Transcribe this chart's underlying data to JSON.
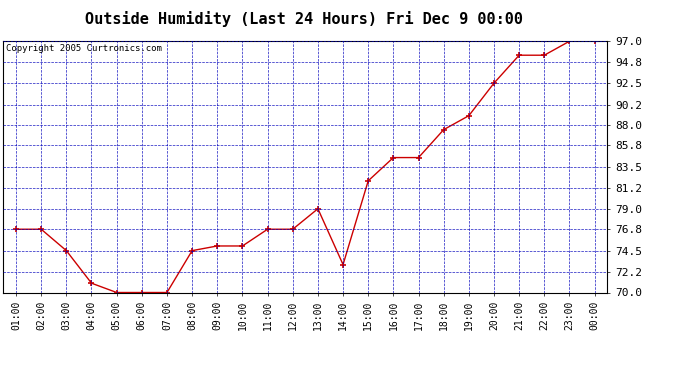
{
  "title": "Outside Humidity (Last 24 Hours) Fri Dec 9 00:00",
  "copyright": "Copyright 2005 Curtronics.com",
  "x_labels": [
    "01:00",
    "02:00",
    "03:00",
    "04:00",
    "05:00",
    "06:00",
    "07:00",
    "08:00",
    "09:00",
    "10:00",
    "11:00",
    "12:00",
    "13:00",
    "14:00",
    "15:00",
    "16:00",
    "17:00",
    "18:00",
    "19:00",
    "20:00",
    "21:00",
    "22:00",
    "23:00",
    "00:00"
  ],
  "y_values": [
    76.8,
    76.8,
    74.5,
    71.0,
    70.0,
    70.0,
    70.0,
    74.5,
    75.0,
    75.0,
    76.8,
    76.8,
    79.0,
    73.0,
    82.0,
    84.5,
    84.5,
    87.5,
    89.0,
    92.5,
    95.5,
    95.5,
    97.0,
    97.0
  ],
  "ylim": [
    70.0,
    97.0
  ],
  "yticks": [
    70.0,
    72.2,
    74.5,
    76.8,
    79.0,
    81.2,
    83.5,
    85.8,
    88.0,
    90.2,
    92.5,
    94.8,
    97.0
  ],
  "line_color": "#cc0000",
  "marker_color": "#cc0000",
  "bg_color": "#ffffff",
  "plot_bg_color": "#ffffff",
  "grid_color": "#0000bb",
  "title_fontsize": 11,
  "copyright_fontsize": 6.5,
  "tick_fontsize": 7,
  "tick_label_fontsize": 8
}
